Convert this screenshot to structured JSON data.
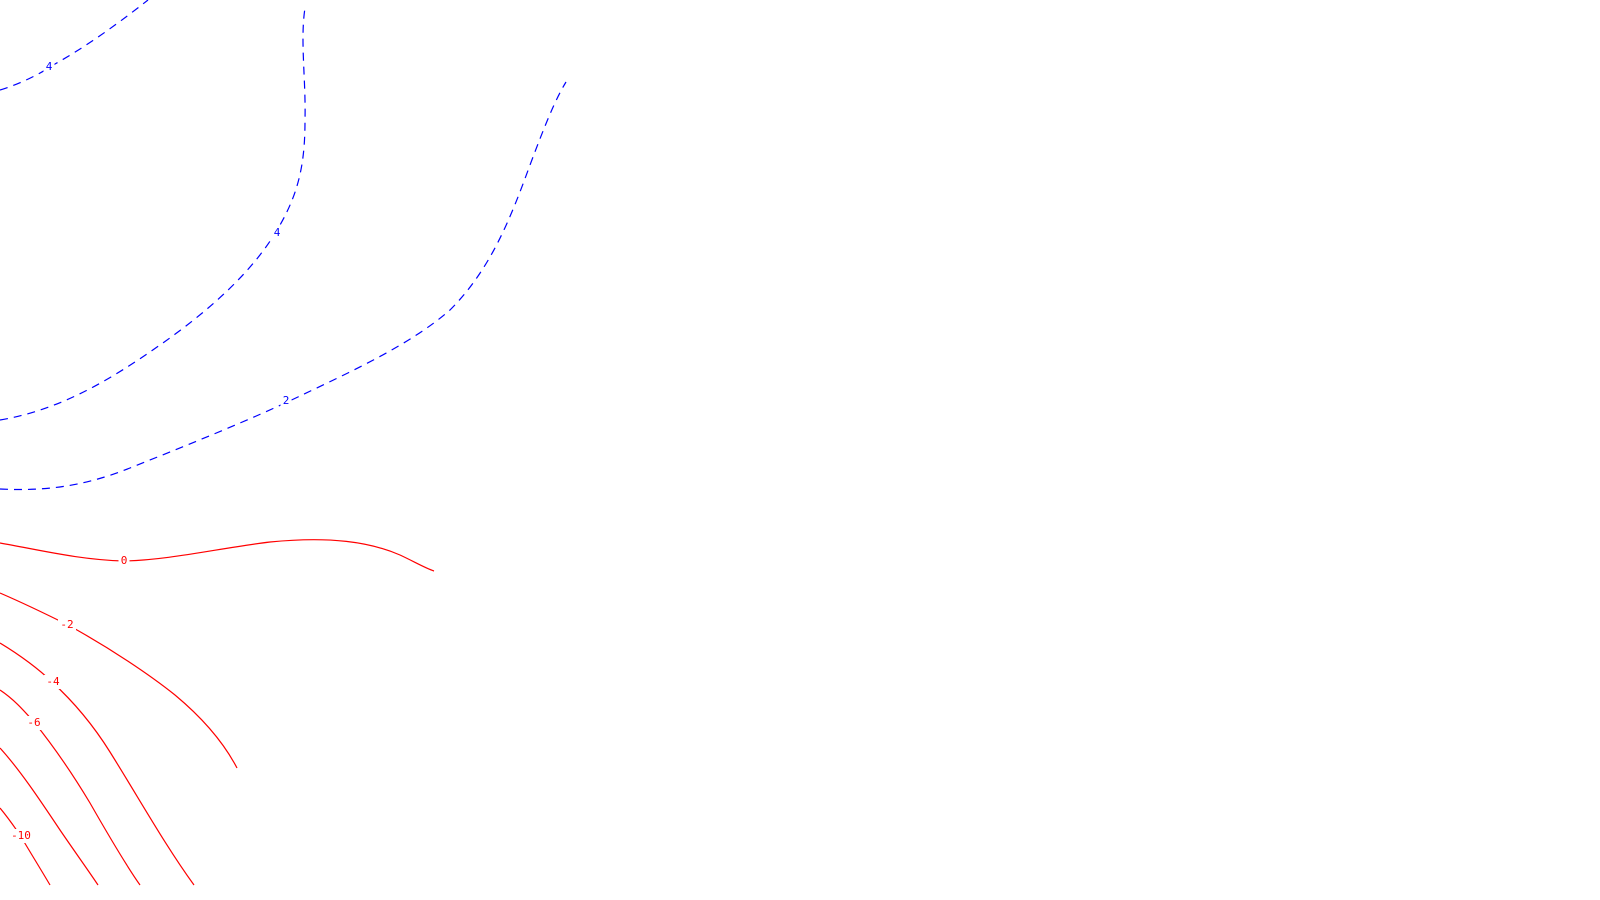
{
  "chart_data": {
    "type": "contour",
    "title": "",
    "xlabel": "",
    "ylabel": "",
    "grid": false,
    "legend": "none",
    "colors": {
      "positive": "#0000ff",
      "zero_and_negative": "#ff0000",
      "background": "#ffffff"
    },
    "line_styles": {
      "positive": "dashed",
      "zero_and_negative": "solid"
    },
    "contours": [
      {
        "level": 4,
        "label": "4",
        "style": "dashed",
        "color": "#0000ff"
      },
      {
        "level": 4,
        "label": "4",
        "style": "dashed",
        "color": "#0000ff"
      },
      {
        "level": 2,
        "label": "2",
        "style": "dashed",
        "color": "#0000ff"
      },
      {
        "level": 0,
        "label": "0",
        "style": "solid",
        "color": "#ff0000"
      },
      {
        "level": -2,
        "label": "-2",
        "style": "solid",
        "color": "#ff0000"
      },
      {
        "level": -4,
        "label": "-4",
        "style": "solid",
        "color": "#ff0000"
      },
      {
        "level": -6,
        "label": "-6",
        "style": "solid",
        "color": "#ff0000"
      },
      {
        "level": -8,
        "label": "",
        "style": "solid",
        "color": "#ff0000"
      },
      {
        "level": -10,
        "label": "-10",
        "style": "solid",
        "color": "#ff0000"
      }
    ]
  }
}
